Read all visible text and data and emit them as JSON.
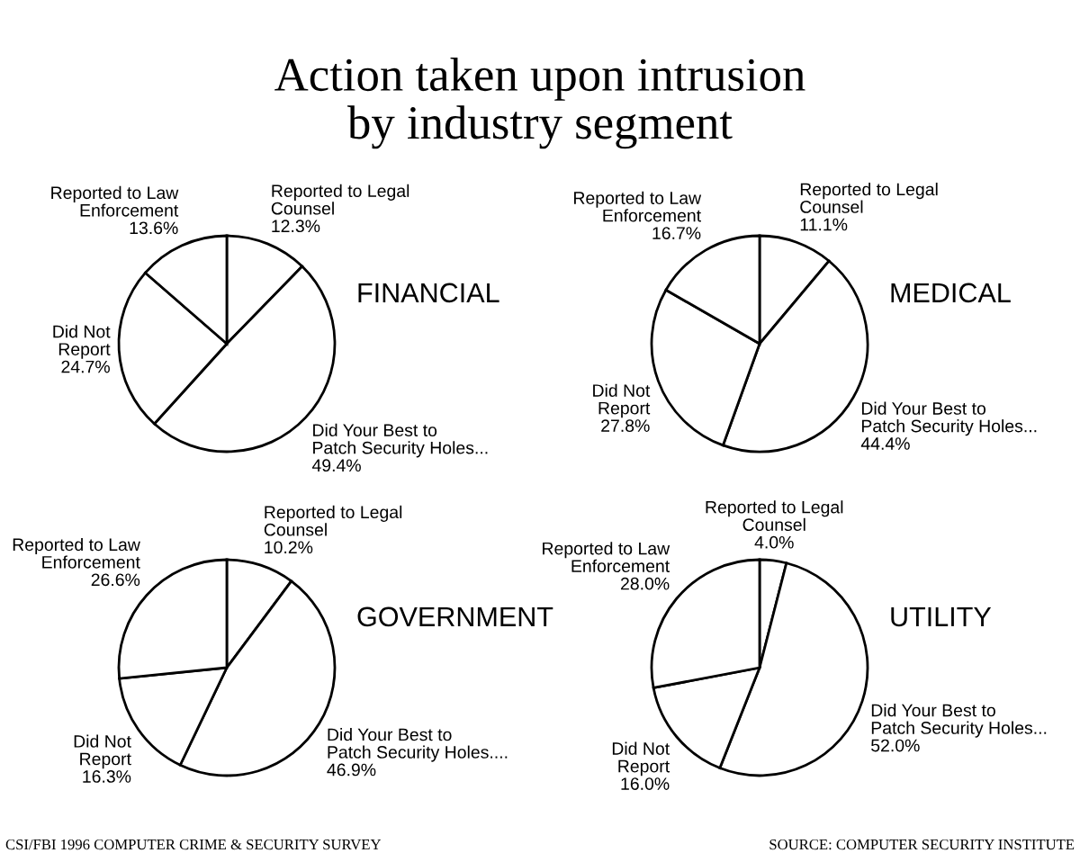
{
  "chart_data": [
    {
      "type": "other",
      "title": "Action taken upon intrusion\nby industry segment",
      "annotations": [
        "CSI/FBI 1996 COMPUTER CRIME & SECURITY SURVEY",
        "SOURCE: COMPUTER SECURITY INSTITUTE"
      ]
    },
    {
      "type": "pie",
      "title": "FINANCIAL",
      "categories": [
        "Reported to Legal\nCounsel",
        "Did Your Best to\nPatch Security Holes...",
        "Did Not\nReport",
        "Reported to Law\nEnforcement"
      ],
      "values": [
        12.3,
        49.4,
        24.7,
        13.6
      ],
      "value_labels": [
        "12.3%",
        "49.4%",
        "24.7%",
        "13.6%"
      ],
      "colors": [
        "#ffffff",
        "#ffffff",
        "#ffffff",
        "#ffffff"
      ]
    },
    {
      "type": "pie",
      "title": "MEDICAL",
      "categories": [
        "Reported to Legal\nCounsel",
        "Did Your Best to\nPatch Security Holes...",
        "Did Not\nReport",
        "Reported to Law\nEnforcement"
      ],
      "values": [
        11.1,
        44.4,
        27.8,
        16.7
      ],
      "value_labels": [
        "11.1%",
        "44.4%",
        "27.8%",
        "16.7%"
      ],
      "colors": [
        "#ffffff",
        "#ffffff",
        "#ffffff",
        "#ffffff"
      ]
    },
    {
      "type": "pie",
      "title": "GOVERNMENT",
      "categories": [
        "Reported to Legal\nCounsel",
        "Did Your Best to\nPatch Security Holes....",
        "Did Not\nReport",
        "Reported to Law\nEnforcement"
      ],
      "values": [
        10.2,
        46.9,
        16.3,
        26.6
      ],
      "value_labels": [
        "10.2%",
        "46.9%",
        "16.3%",
        "26.6%"
      ],
      "colors": [
        "#ffffff",
        "#ffffff",
        "#ffffff",
        "#ffffff"
      ]
    },
    {
      "type": "pie",
      "title": "UTILITY",
      "categories": [
        "Reported to Legal\nCounsel",
        "Did Your Best to\nPatch Security Holes...",
        "Did Not\nReport",
        "Reported to Law\nEnforcement"
      ],
      "values": [
        4.0,
        52.0,
        16.0,
        28.0
      ],
      "value_labels": [
        "4.0%",
        "52.0%",
        "16.0%",
        "28.0%"
      ],
      "colors": [
        "#ffffff",
        "#ffffff",
        "#ffffff",
        "#ffffff"
      ]
    }
  ]
}
